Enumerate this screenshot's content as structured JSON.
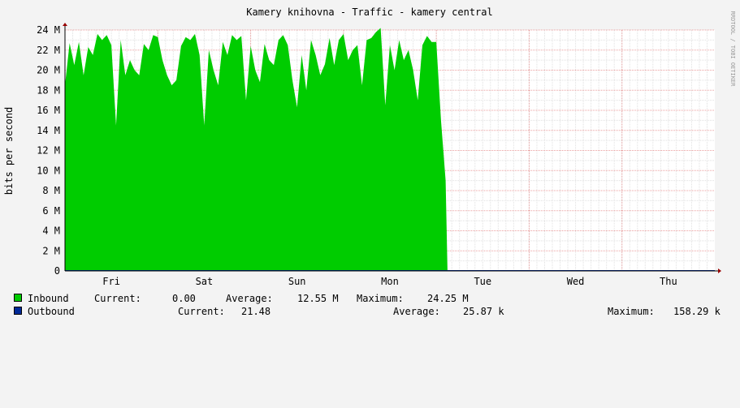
{
  "chart_data": {
    "type": "area",
    "title": "Kamery knihovna - Traffic - kamery central",
    "ylabel": "bits per second",
    "watermark": "RRDTOOL / TOBI OETIKER",
    "ylim": [
      0,
      24000000
    ],
    "y_ticks": [
      "0",
      "2 M",
      "4 M",
      "6 M",
      "8 M",
      "10 M",
      "12 M",
      "14 M",
      "16 M",
      "18 M",
      "20 M",
      "22 M",
      "24 M"
    ],
    "x_range_days": [
      0,
      7
    ],
    "x_labels": [
      "Fri",
      "Sat",
      "Sun",
      "Mon",
      "Tue",
      "Wed",
      "Thu"
    ],
    "grid": true,
    "colors": {
      "inbound": "#00CC00",
      "outbound": "#002A97",
      "major_grid": "#E06060",
      "minor_grid": "#E0E0E0",
      "background": "#F3F3F3",
      "canvas": "#FFFFFF"
    },
    "series": [
      {
        "name": "Inbound",
        "color": "#00CC00",
        "x_days": [
          0.0,
          0.05,
          0.1,
          0.15,
          0.2,
          0.25,
          0.3,
          0.35,
          0.4,
          0.45,
          0.5,
          0.55,
          0.6,
          0.65,
          0.7,
          0.75,
          0.8,
          0.85,
          0.9,
          0.95,
          1.0,
          1.05,
          1.1,
          1.15,
          1.2,
          1.25,
          1.3,
          1.35,
          1.4,
          1.45,
          1.5,
          1.55,
          1.6,
          1.65,
          1.7,
          1.75,
          1.8,
          1.85,
          1.9,
          1.95,
          2.0,
          2.05,
          2.1,
          2.15,
          2.2,
          2.25,
          2.3,
          2.35,
          2.4,
          2.45,
          2.5,
          2.55,
          2.6,
          2.65,
          2.7,
          2.75,
          2.8,
          2.85,
          2.9,
          2.95,
          3.0,
          3.05,
          3.1,
          3.15,
          3.2,
          3.25,
          3.3,
          3.35,
          3.4,
          3.45,
          3.5,
          3.55,
          3.6,
          3.65,
          3.7,
          3.75,
          3.8,
          3.85,
          3.9,
          3.95,
          4.0,
          4.05,
          4.1,
          4.12,
          4.15
        ],
        "values_mbps": [
          18.5,
          22.7,
          20.5,
          22.8,
          19.5,
          22.3,
          21.5,
          23.6,
          23.0,
          23.5,
          22.5,
          14.5,
          23.0,
          19.5,
          21.0,
          20.0,
          19.5,
          22.6,
          22.0,
          23.5,
          23.3,
          21.0,
          19.5,
          18.5,
          19.0,
          22.4,
          23.3,
          23.0,
          23.6,
          21.5,
          14.5,
          22.0,
          20.0,
          18.5,
          22.8,
          21.5,
          23.5,
          23.0,
          23.4,
          17.0,
          22.4,
          20.0,
          18.8,
          22.6,
          21.0,
          20.5,
          23.0,
          23.5,
          22.5,
          19.0,
          16.3,
          21.5,
          18.0,
          23.0,
          21.5,
          19.5,
          20.6,
          23.2,
          20.5,
          23.0,
          23.6,
          21.0,
          22.0,
          22.5,
          18.5,
          23.0,
          23.2,
          23.8,
          24.2,
          16.5,
          22.5,
          20.0,
          23.0,
          21.0,
          22.0,
          20.0,
          17.0,
          22.5,
          23.4,
          22.8,
          22.8,
          15.0,
          9.0,
          0.0,
          0.0
        ]
      },
      {
        "name": "Outbound",
        "color": "#002A97",
        "x_days": [
          0.0,
          7.0
        ],
        "values_mbps": [
          0.0,
          0.0
        ]
      }
    ],
    "legend": {
      "inbound": {
        "label": "Inbound",
        "current_label": "Current:",
        "current": "0.00",
        "average_label": "Average:",
        "average": "12.55 M",
        "maximum_label": "Maximum:",
        "maximum": "24.25 M"
      },
      "outbound": {
        "label": "Outbound",
        "current_label": "Current:",
        "current": "21.48",
        "average_label": "Average:",
        "average": "25.87 k",
        "maximum_label": "Maximum:",
        "maximum": "158.29 k"
      }
    }
  }
}
